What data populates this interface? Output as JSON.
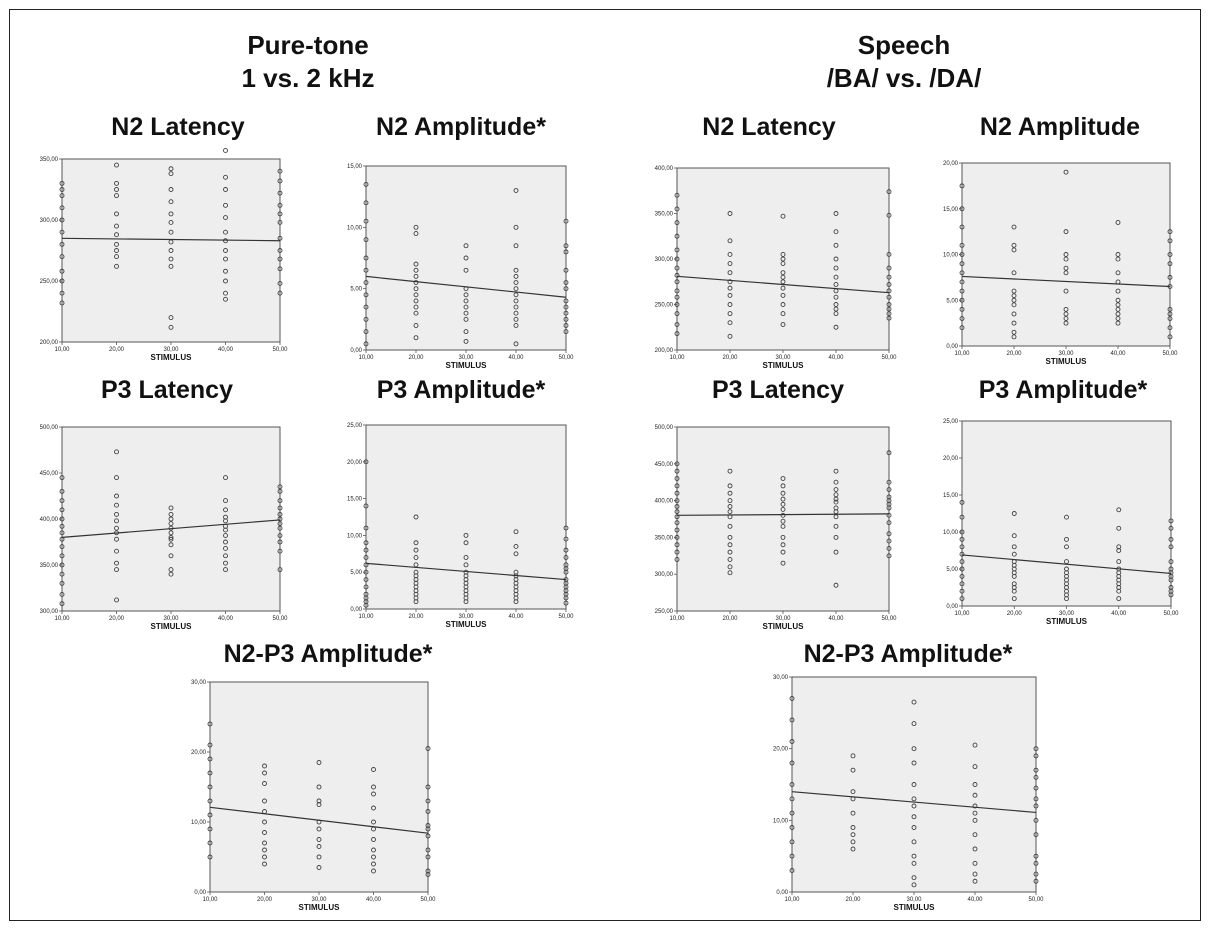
{
  "groups": {
    "puretone": {
      "title": "Pure-tone",
      "subtitle": "1 vs. 2 kHz"
    },
    "speech": {
      "title": "Speech",
      "subtitle": "/BA/ vs. /DA/"
    }
  },
  "colors": {
    "plot_bg": "#eeeeee",
    "points": "#444444",
    "fit_line": "#333333"
  },
  "chart_data": [
    {
      "id": "pt-n2-lat",
      "type": "scatter",
      "title": "N2 Latency",
      "xlabel": "STIMULUS",
      "ylabel": "",
      "xlim": [
        10,
        50
      ],
      "ylim": [
        200,
        350
      ],
      "xticks": [
        "10,00",
        "20,00",
        "30,00",
        "40,00",
        "50,00"
      ],
      "yticks": [
        200,
        250,
        300,
        350
      ],
      "ytick_labels": [
        "200,00",
        "250,00",
        "300,00",
        "350,00"
      ],
      "fit": [
        285,
        283
      ],
      "points": {
        "10": [
          330,
          325,
          320,
          310,
          300,
          290,
          280,
          270,
          258,
          250,
          240,
          232
        ],
        "20": [
          345,
          330,
          325,
          320,
          305,
          295,
          288,
          280,
          275,
          270,
          262
        ],
        "30": [
          342,
          338,
          325,
          315,
          305,
          298,
          290,
          282,
          275,
          268,
          262,
          220,
          212
        ],
        "40": [
          357,
          335,
          325,
          312,
          302,
          290,
          283,
          275,
          268,
          258,
          250,
          240,
          235
        ],
        "50": [
          340,
          332,
          322,
          312,
          305,
          298,
          285,
          275,
          268,
          260,
          248,
          240
        ]
      }
    },
    {
      "id": "pt-n2-amp",
      "type": "scatter",
      "title": "N2 Amplitude*",
      "xlabel": "STIMULUS",
      "ylabel": "",
      "xlim": [
        10,
        50
      ],
      "ylim": [
        0,
        15
      ],
      "xticks": [
        "10,00",
        "20,00",
        "30,00",
        "40,00",
        "50,00"
      ],
      "yticks": [
        0,
        5,
        10,
        15
      ],
      "ytick_labels": [
        "0,00",
        "5,00",
        "10,00",
        "15,00"
      ],
      "fit": [
        6.0,
        4.3
      ],
      "points": {
        "10": [
          13.5,
          12,
          10.5,
          9,
          7.5,
          6.5,
          5.5,
          4.5,
          3.5,
          2.5,
          1.5,
          0.5
        ],
        "20": [
          10,
          9.5,
          7,
          6.5,
          6,
          5.5,
          5,
          4.5,
          4,
          3.5,
          3,
          2,
          1
        ],
        "30": [
          8.5,
          7.5,
          6.5,
          5,
          4.5,
          4,
          3.5,
          3,
          2.5,
          1.5,
          0.7
        ],
        "40": [
          13,
          10,
          8.5,
          6.5,
          6,
          5.5,
          5,
          4.5,
          4,
          3.5,
          3,
          2.5,
          2,
          0.5
        ],
        "50": [
          10.5,
          8.5,
          8,
          6.5,
          5.5,
          5,
          4,
          3.5,
          3,
          2.5,
          2,
          1.5
        ]
      }
    },
    {
      "id": "pt-p3-lat",
      "type": "scatter",
      "title": "P3 Latency",
      "xlabel": "STIMULUS",
      "ylabel": "",
      "xlim": [
        10,
        50
      ],
      "ylim": [
        300,
        500
      ],
      "xticks": [
        "10,00",
        "20,00",
        "30,00",
        "40,00",
        "50,00"
      ],
      "yticks": [
        300,
        350,
        400,
        450,
        500
      ],
      "ytick_labels": [
        "300,00",
        "350,00",
        "400,00",
        "450,00",
        "500,00"
      ],
      "fit": [
        380,
        399
      ],
      "points": {
        "10": [
          445,
          430,
          420,
          410,
          400,
          392,
          385,
          378,
          370,
          360,
          350,
          340,
          330,
          318,
          308
        ],
        "20": [
          473,
          445,
          425,
          415,
          405,
          398,
          390,
          385,
          378,
          365,
          352,
          345,
          312
        ],
        "30": [
          412,
          405,
          400,
          395,
          390,
          385,
          380,
          378,
          372,
          360,
          345,
          340
        ],
        "40": [
          445,
          420,
          410,
          402,
          398,
          392,
          388,
          382,
          375,
          368,
          360,
          352,
          345
        ],
        "50": [
          435,
          430,
          420,
          412,
          405,
          400,
          395,
          390,
          382,
          375,
          365,
          345
        ]
      }
    },
    {
      "id": "pt-p3-amp",
      "type": "scatter",
      "title": "P3 Amplitude*",
      "xlabel": "STIMULUS",
      "ylabel": "",
      "xlim": [
        10,
        50
      ],
      "ylim": [
        0,
        25
      ],
      "xticks": [
        "10,00",
        "20,00",
        "30,00",
        "40,00",
        "50,00"
      ],
      "yticks": [
        0,
        5,
        10,
        15,
        20,
        25
      ],
      "ytick_labels": [
        "0,00",
        "5,00",
        "10,00",
        "15,00",
        "20,00",
        "25,00"
      ],
      "fit": [
        6.2,
        4.0
      ],
      "points": {
        "10": [
          20,
          14,
          11,
          9,
          8,
          7,
          6,
          5,
          4,
          3,
          2,
          1.5,
          1,
          0.5
        ],
        "20": [
          12.5,
          9,
          8,
          7,
          6,
          5,
          4.5,
          4,
          3.5,
          3,
          2.5,
          2,
          1.5,
          1
        ],
        "30": [
          10,
          9,
          7,
          6,
          5,
          4.5,
          4,
          3.5,
          3,
          2.5,
          2,
          1.5,
          1
        ],
        "40": [
          10.5,
          8.5,
          7.5,
          5,
          4.5,
          4,
          3.5,
          3,
          2.5,
          2,
          1.5,
          1
        ],
        "50": [
          11,
          9.5,
          8,
          7,
          6,
          5.5,
          5,
          4,
          3.5,
          3,
          2.5,
          2,
          1.5,
          0.8
        ]
      }
    },
    {
      "id": "sp-n2-lat",
      "type": "scatter",
      "title": "N2 Latency",
      "xlabel": "STIMULUS",
      "ylabel": "",
      "xlim": [
        10,
        50
      ],
      "ylim": [
        200,
        400
      ],
      "xticks": [
        "10,00",
        "20,00",
        "30,00",
        "40,00",
        "50,00"
      ],
      "yticks": [
        200,
        250,
        300,
        350,
        400
      ],
      "ytick_labels": [
        "200,00",
        "250,00",
        "300,00",
        "350,00",
        "400,00"
      ],
      "fit": [
        281,
        263
      ],
      "points": {
        "10": [
          370,
          355,
          340,
          325,
          310,
          300,
          290,
          282,
          275,
          265,
          258,
          250,
          240,
          228,
          218
        ],
        "20": [
          350,
          320,
          305,
          295,
          285,
          275,
          268,
          260,
          250,
          240,
          230,
          215
        ],
        "30": [
          347,
          305,
          300,
          295,
          285,
          280,
          275,
          268,
          260,
          250,
          240,
          228
        ],
        "40": [
          350,
          330,
          315,
          300,
          290,
          280,
          272,
          265,
          258,
          250,
          245,
          240,
          225
        ],
        "50": [
          374,
          348,
          305,
          290,
          280,
          272,
          265,
          258,
          250,
          245,
          240,
          235
        ]
      }
    },
    {
      "id": "sp-n2-amp",
      "type": "scatter",
      "title": "N2 Amplitude",
      "xlabel": "STIMULUS",
      "ylabel": "",
      "xlim": [
        10,
        50
      ],
      "ylim": [
        0,
        20
      ],
      "xticks": [
        "10,00",
        "20,00",
        "30,00",
        "40,00",
        "50,00"
      ],
      "yticks": [
        0,
        5,
        10,
        15,
        20
      ],
      "ytick_labels": [
        "0,00",
        "5,00",
        "10,00",
        "15,00",
        "20,00"
      ],
      "fit": [
        7.6,
        6.5
      ],
      "points": {
        "10": [
          17.5,
          15,
          13,
          11,
          10,
          9,
          8,
          7,
          6,
          5,
          4,
          3,
          2
        ],
        "20": [
          13,
          11,
          10.5,
          8,
          6,
          5.5,
          5,
          4.5,
          3.5,
          2.5,
          1.5,
          1
        ],
        "30": [
          19,
          12.5,
          10,
          9.5,
          8.5,
          8,
          6,
          4,
          3.5,
          3,
          2.5
        ],
        "40": [
          13.5,
          10,
          9.5,
          8,
          7,
          6,
          5,
          4.5,
          4,
          3.5,
          3,
          2.5
        ],
        "50": [
          12.5,
          11.5,
          10,
          9,
          7.5,
          6.5,
          4,
          3.5,
          3,
          2,
          1
        ]
      }
    },
    {
      "id": "sp-p3-lat",
      "type": "scatter",
      "title": "P3 Latency",
      "xlabel": "STIMULUS",
      "ylabel": "",
      "xlim": [
        10,
        50
      ],
      "ylim": [
        250,
        500
      ],
      "xticks": [
        "10,00",
        "20,00",
        "30,00",
        "40,00",
        "50,00"
      ],
      "yticks": [
        250,
        300,
        350,
        400,
        450,
        500
      ],
      "ytick_labels": [
        "250,00",
        "300,00",
        "350,00",
        "400,00",
        "450,00",
        "500,00"
      ],
      "fit": [
        380,
        382
      ],
      "points": {
        "10": [
          450,
          440,
          430,
          420,
          410,
          400,
          392,
          385,
          378,
          370,
          360,
          350,
          340,
          330,
          320
        ],
        "20": [
          440,
          420,
          410,
          400,
          392,
          385,
          378,
          365,
          350,
          340,
          330,
          320,
          310,
          302
        ],
        "30": [
          430,
          420,
          410,
          402,
          395,
          388,
          380,
          372,
          365,
          350,
          340,
          330,
          315
        ],
        "40": [
          440,
          425,
          415,
          408,
          402,
          398,
          390,
          385,
          378,
          365,
          350,
          330,
          285
        ],
        "50": [
          465,
          425,
          415,
          405,
          400,
          395,
          390,
          380,
          370,
          355,
          345,
          335,
          325
        ]
      }
    },
    {
      "id": "sp-p3-amp",
      "type": "scatter",
      "title": "P3 Amplitude*",
      "xlabel": "STIMULUS",
      "ylabel": "",
      "xlim": [
        10,
        50
      ],
      "ylim": [
        0,
        25
      ],
      "xticks": [
        "10,00",
        "20,00",
        "30,00",
        "40,00",
        "50,00"
      ],
      "yticks": [
        0,
        5,
        10,
        15,
        20,
        25
      ],
      "ytick_labels": [
        "0,00",
        "5,00",
        "10,00",
        "15,00",
        "20,00",
        "25,00"
      ],
      "fit": [
        6.9,
        4.4
      ],
      "points": {
        "10": [
          14,
          12,
          10,
          9,
          8,
          7,
          6,
          5,
          4,
          3,
          2,
          1
        ],
        "20": [
          12.5,
          9.5,
          8,
          7,
          6,
          5.5,
          5,
          4.5,
          4,
          3,
          2.5,
          2,
          1
        ],
        "30": [
          12,
          9,
          8,
          6,
          5,
          4.5,
          4,
          3.5,
          3,
          2.5,
          2,
          1.5,
          1
        ],
        "40": [
          13,
          10.5,
          8,
          7.5,
          6,
          5,
          4.5,
          4,
          3.5,
          3,
          2.5,
          2,
          1
        ],
        "50": [
          11.5,
          10.5,
          9,
          8,
          6,
          5,
          4.5,
          4,
          3.5,
          2.5,
          2,
          1.5
        ]
      }
    },
    {
      "id": "pt-n2p3-amp",
      "type": "scatter",
      "title": "N2-P3 Amplitude*",
      "xlabel": "STIMULUS",
      "ylabel": "",
      "xlim": [
        10,
        50
      ],
      "ylim": [
        0,
        30
      ],
      "xticks": [
        "10,00",
        "20,00",
        "30,00",
        "40,00",
        "50,00"
      ],
      "yticks": [
        0,
        10,
        20,
        30
      ],
      "ytick_labels": [
        "0,00",
        "10,00",
        "20,00",
        "30,00"
      ],
      "fit": [
        12.1,
        8.4
      ],
      "points": {
        "10": [
          24,
          21,
          19,
          17,
          15,
          13,
          11,
          9,
          7,
          5
        ],
        "20": [
          18,
          17,
          15.5,
          13,
          11.5,
          10,
          8.5,
          7,
          6,
          5,
          4
        ],
        "30": [
          18.5,
          15,
          13,
          12.5,
          10,
          9,
          7.5,
          6.5,
          5,
          3.5
        ],
        "40": [
          17.5,
          15,
          14,
          12,
          10,
          9,
          7.5,
          6,
          5,
          4,
          3
        ],
        "50": [
          20.5,
          15,
          13,
          11.5,
          9.5,
          9,
          8,
          6,
          5,
          3,
          2.5
        ]
      }
    },
    {
      "id": "sp-n2p3-amp",
      "type": "scatter",
      "title": "N2-P3 Amplitude*",
      "xlabel": "STIMULUS",
      "ylabel": "",
      "xlim": [
        10,
        50
      ],
      "ylim": [
        0,
        30
      ],
      "xticks": [
        "10,00",
        "20,00",
        "30,00",
        "40,00",
        "50,00"
      ],
      "yticks": [
        0,
        10,
        20,
        30
      ],
      "ytick_labels": [
        "0,00",
        "10,00",
        "20,00",
        "30,00"
      ],
      "fit": [
        14.0,
        11.1
      ],
      "points": {
        "10": [
          27,
          24,
          21,
          18,
          15,
          13,
          11,
          9,
          7,
          5,
          3
        ],
        "20": [
          19,
          17,
          14,
          13,
          11,
          9,
          8,
          7,
          6
        ],
        "30": [
          26.5,
          23.5,
          20,
          18,
          15,
          13,
          12,
          10.5,
          9,
          7,
          5,
          4,
          2,
          1
        ],
        "40": [
          20.5,
          17.5,
          15,
          13.5,
          12,
          11,
          10,
          8,
          6,
          4,
          2.5,
          1.5
        ],
        "50": [
          20,
          19,
          17,
          16,
          14.5,
          13,
          12,
          10,
          8,
          5,
          4,
          2.5,
          1.5
        ]
      }
    }
  ]
}
